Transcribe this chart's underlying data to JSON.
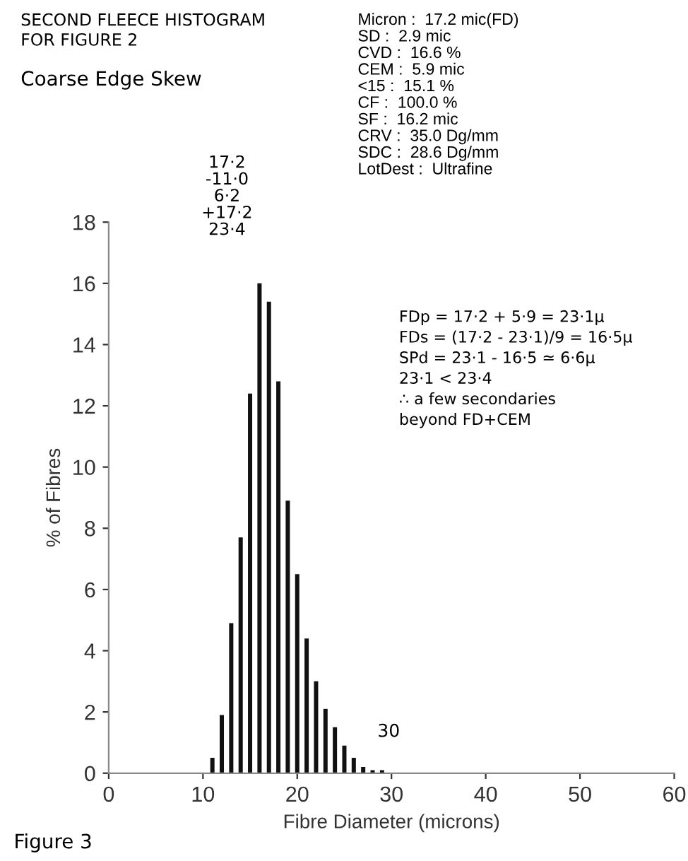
{
  "chart_data": {
    "type": "histogram",
    "title": "SECOND FLEECE HISTOGRAM\nFOR FIGURE 2",
    "subtitle": "Coarse Edge Skew",
    "xlabel": "Fibre Diameter (microns)",
    "ylabel": "% of Fibres",
    "bins": [
      10.5,
      11.5,
      12.5,
      13.5,
      14.5,
      15.5,
      16.5,
      17.5,
      18.5,
      19.5,
      20.5,
      21.5,
      22.5,
      23.5,
      24.5,
      25.5,
      26.5,
      27.5,
      28.5,
      29.5
    ],
    "values": [
      0.5,
      1.9,
      4.9,
      7.7,
      12.4,
      16.0,
      15.4,
      12.8,
      8.9,
      6.5,
      4.4,
      3.0,
      2.1,
      1.5,
      0.9,
      0.5,
      0.2,
      0.1,
      0.1
    ],
    "color": "#111111",
    "xlim": [
      0,
      60
    ],
    "xticks": [
      0,
      10,
      20,
      30,
      40,
      50,
      60
    ],
    "ylim": [
      0,
      18
    ],
    "yticks": [
      0,
      2,
      4,
      6,
      8,
      10,
      12,
      14,
      16,
      18
    ],
    "grid": false,
    "legend": false,
    "annotations": [
      "Micron :  17.2 mic(FD)\nSD :  2.9 mic\nCVD :  16.6 %\nCEM :  5.9 mic\n<15 :  15.1 %\nCF :  100.0 %\nSF :  16.2 mic\nCRV :  35.0 Dg/mm\nSDC :  28.6 Dg/mm\nLotDest :  Ultrafine",
      "17·2\n-11·0\n6·2\n+17·2\n23·4",
      "FDp = 17·2 + 5·9 = 23·1μ\nFDs = (17·2 - 23·1)/9 = 16·5μ\nSPd = 23·1 - 16·5 ≃ 6·6μ\n23·1 < 23·4\n∴ a few secondaries\nbeyond FD+CEM",
      "Figure 3",
      "30"
    ]
  }
}
